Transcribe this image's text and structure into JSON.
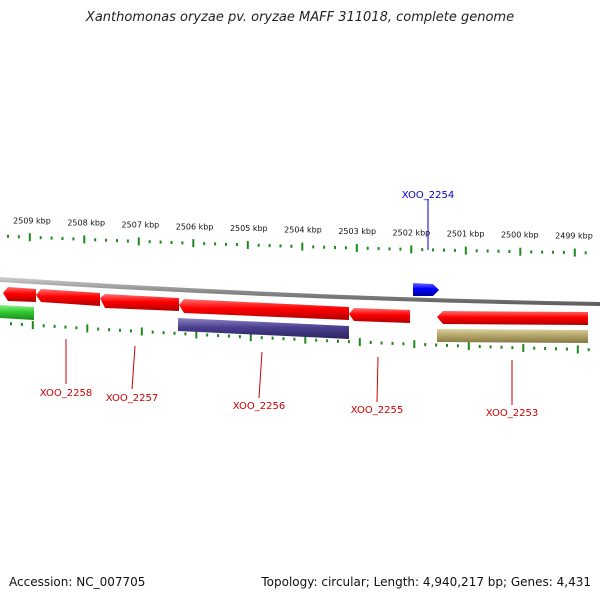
{
  "title": "Xanthomonas oryzae pv. oryzae MAFF 311018, complete genome",
  "footer": {
    "accession": "Accession: NC_007705",
    "topology": "Topology: circular; Length: 4,940,217 bp; Genes: 4,431"
  },
  "chart_data": {
    "type": "genome-track",
    "unit": "kbp",
    "ticks": [
      "2509 kbp",
      "2508 kbp",
      "2507 kbp",
      "2506 kbp",
      "2505 kbp",
      "2504 kbp",
      "2503 kbp",
      "2502 kbp",
      "2501 kbp",
      "2500 kbp",
      "2499 kbp"
    ],
    "genes": [
      {
        "label": "XOO_2254",
        "color": "#0000cc",
        "strand": "+",
        "labelled": true
      },
      {
        "label": "XOO_2258",
        "color": "#cc0000",
        "strand": "-",
        "labelled": true
      },
      {
        "label": "XOO_2257",
        "color": "#cc0000",
        "strand": "-",
        "labelled": true
      },
      {
        "label": "XOO_2256",
        "color": "#cc0000",
        "strand": "-",
        "labelled": true
      },
      {
        "label": "XOO_2255",
        "color": "#cc0000",
        "strand": "-",
        "labelled": true
      },
      {
        "label": "XOO_2253",
        "color": "#cc0000",
        "strand": "-",
        "labelled": true
      }
    ],
    "features": [
      {
        "kind": "gene",
        "color": "#ff0000",
        "strand": "-"
      },
      {
        "kind": "feature",
        "color": "#33cc33",
        "strand": "-"
      },
      {
        "kind": "feature",
        "color": "#4a3f8f",
        "strand": "-"
      },
      {
        "kind": "feature",
        "color": "#b5a66a",
        "strand": "-"
      }
    ],
    "colors": {
      "forward": "#0000ff",
      "reverse": "#ff0000",
      "tick": "#1a8a1a",
      "backbone": "#888888"
    }
  }
}
